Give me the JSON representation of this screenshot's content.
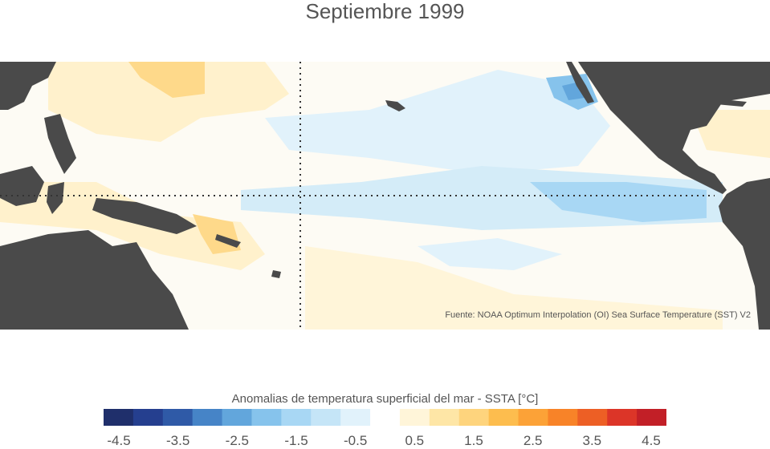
{
  "title": "Septiembre 1999",
  "source": "Fuente: NOAA Optimum Interpolation (OI) Sea Surface Temperature (SST) V2",
  "colorbar": {
    "label": "Anomalias de temperatura superficial del mar - SSTA  [°C]",
    "colors": [
      "#1f2f6b",
      "#253f8f",
      "#2f5aa7",
      "#4684c7",
      "#62a6dc",
      "#86c3ec",
      "#a8d7f4",
      "#c5e5f7",
      "#e1f2fb",
      "#ffffff",
      "#fff5d9",
      "#fee6a6",
      "#fed47d",
      "#fdbd4e",
      "#fca237",
      "#f88328",
      "#ed5f25",
      "#dc3528",
      "#c21f27"
    ],
    "ticks": [
      "-4.5",
      "-3.5",
      "-2.5",
      "-1.5",
      "-0.5",
      "0.5",
      "1.5",
      "2.5",
      "3.5",
      "4.5"
    ]
  }
}
